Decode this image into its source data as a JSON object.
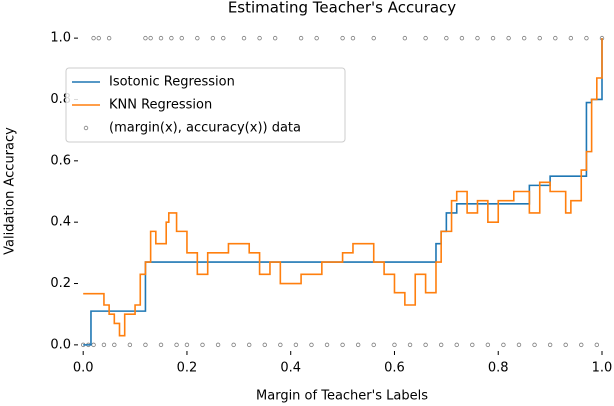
{
  "chart_data": {
    "type": "line",
    "title": "Estimating Teacher's Accuracy",
    "xlabel": "Margin of Teacher's Labels",
    "ylabel": "Validation Accuracy",
    "xlim": [
      -0.01,
      1.0
    ],
    "ylim": [
      -0.02,
      1.02
    ],
    "xticks": [
      {
        "value": 0,
        "label": "0.0"
      },
      0.2,
      0.4,
      0.6,
      0.8,
      {
        "value": 1,
        "label": "1.0"
      }
    ],
    "yticks": [
      {
        "value": 0,
        "label": "0.0"
      },
      0.2,
      0.4,
      0.6,
      0.8,
      {
        "value": 1,
        "label": "1.0"
      }
    ],
    "grid": false,
    "legend": "upper left",
    "series": [
      {
        "name": "Isotonic Regression",
        "type": "step",
        "color": "#1f77b4",
        "x": [
          0,
          0.015,
          0.12,
          0.68,
          0.69,
          0.7,
          0.72,
          0.86,
          0.9,
          0.97,
          0.98,
          1.0
        ],
        "values": [
          0,
          0.11,
          0.27,
          0.33,
          0.37,
          0.43,
          0.46,
          0.52,
          0.55,
          0.79,
          0.8,
          1.0
        ]
      },
      {
        "name": "KNN Regression",
        "type": "step",
        "color": "#ff7f0e",
        "x": [
          0,
          0.04,
          0.05,
          0.06,
          0.07,
          0.08,
          0.1,
          0.11,
          0.12,
          0.13,
          0.14,
          0.16,
          0.165,
          0.18,
          0.2,
          0.22,
          0.24,
          0.28,
          0.32,
          0.34,
          0.36,
          0.38,
          0.42,
          0.46,
          0.5,
          0.52,
          0.56,
          0.58,
          0.6,
          0.62,
          0.64,
          0.66,
          0.68,
          0.69,
          0.71,
          0.72,
          0.74,
          0.76,
          0.78,
          0.8,
          0.83,
          0.86,
          0.88,
          0.9,
          0.93,
          0.94,
          0.96,
          0.97,
          0.98,
          0.99,
          1.0
        ],
        "values": [
          0.167,
          0.13,
          0.1,
          0.07,
          0.03,
          0.1,
          0.13,
          0.23,
          0.27,
          0.37,
          0.33,
          0.4,
          0.43,
          0.37,
          0.3,
          0.23,
          0.3,
          0.33,
          0.3,
          0.23,
          0.27,
          0.2,
          0.23,
          0.27,
          0.3,
          0.33,
          0.27,
          0.23,
          0.17,
          0.13,
          0.23,
          0.17,
          0.27,
          0.37,
          0.47,
          0.5,
          0.43,
          0.47,
          0.4,
          0.47,
          0.5,
          0.43,
          0.53,
          0.5,
          0.43,
          0.47,
          0.57,
          0.63,
          0.8,
          0.87,
          1.0
        ]
      },
      {
        "name": "(margin(x), accuracy(x)) data",
        "type": "scatter",
        "color": "#808080",
        "x": [
          0.0,
          0.01,
          0.02,
          0.04,
          0.06,
          0.09,
          0.12,
          0.15,
          0.18,
          0.2,
          0.23,
          0.26,
          0.29,
          0.32,
          0.35,
          0.38,
          0.41,
          0.44,
          0.47,
          0.5,
          0.53,
          0.56,
          0.6,
          0.63,
          0.66,
          0.69,
          0.72,
          0.75,
          0.78,
          0.81,
          0.84,
          0.87,
          0.9,
          0.93,
          0.96,
          0.99,
          0.02,
          0.03,
          0.05,
          0.12,
          0.13,
          0.15,
          0.17,
          0.19,
          0.22,
          0.25,
          0.27,
          0.31,
          0.34,
          0.37,
          0.42,
          0.45,
          0.5,
          0.52,
          0.56,
          0.62,
          0.66,
          0.7,
          0.73,
          0.76,
          0.79,
          0.82,
          0.85,
          0.88,
          0.91,
          0.94,
          0.97,
          1.0
        ],
        "values": [
          0,
          0,
          0,
          0,
          0,
          0,
          0,
          0,
          0,
          0,
          0,
          0,
          0,
          0,
          0,
          0,
          0,
          0,
          0,
          0,
          0,
          0,
          0,
          0,
          0,
          0,
          0,
          0,
          0,
          0,
          0,
          0,
          0,
          0,
          0,
          0,
          1,
          1,
          1,
          1,
          1,
          1,
          1,
          1,
          1,
          1,
          1,
          1,
          1,
          1,
          1,
          1,
          1,
          1,
          1,
          1,
          1,
          1,
          1,
          1,
          1,
          1,
          1,
          1,
          1,
          1,
          1,
          1
        ]
      }
    ]
  }
}
